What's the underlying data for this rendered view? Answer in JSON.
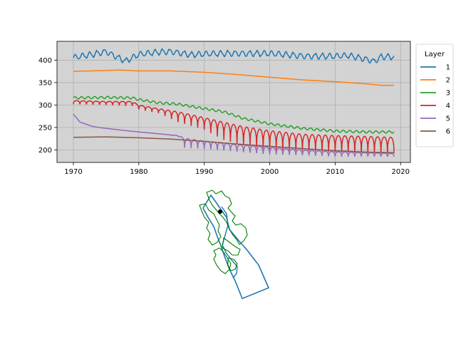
{
  "chart_data": [
    {
      "type": "line",
      "title": "",
      "xlabel": "",
      "ylabel": "",
      "xlim": [
        1967.5,
        2021.5
      ],
      "ylim": [
        172,
        442
      ],
      "x_ticks": [
        1970,
        1980,
        1990,
        2000,
        2010,
        2020
      ],
      "y_ticks": [
        200,
        250,
        300,
        350,
        400
      ],
      "grid": true,
      "background": "#d3d3d3",
      "legend": {
        "title": "Layer",
        "placement": "outside-right"
      },
      "series": [
        {
          "name": "1",
          "color": "#1f77b4",
          "pattern": "jagged",
          "points": [
            [
              1970,
              405
            ],
            [
              1973,
              413
            ],
            [
              1975,
              420
            ],
            [
              1977,
              405
            ],
            [
              1978,
              398
            ],
            [
              1980,
              412
            ],
            [
              1983,
              418
            ],
            [
              1985,
              420
            ],
            [
              1988,
              412
            ],
            [
              1990,
              413
            ],
            [
              1995,
              416
            ],
            [
              2000,
              414
            ],
            [
              2005,
              410
            ],
            [
              2010,
              408
            ],
            [
              2012,
              410
            ],
            [
              2015,
              402
            ],
            [
              2016,
              398
            ],
            [
              2017,
              408
            ],
            [
              2019,
              407
            ]
          ]
        },
        {
          "name": "2",
          "color": "#ff7f0e",
          "pattern": "smooth",
          "points": [
            [
              1970,
              375
            ],
            [
              1975,
              377
            ],
            [
              1977,
              378
            ],
            [
              1980,
              376
            ],
            [
              1985,
              376
            ],
            [
              1990,
              373
            ],
            [
              1995,
              368
            ],
            [
              2000,
              362
            ],
            [
              2005,
              356
            ],
            [
              2010,
              352
            ],
            [
              2015,
              347
            ],
            [
              2017,
              344
            ],
            [
              2019,
              344
            ]
          ]
        },
        {
          "name": "3",
          "color": "#2ca02c",
          "pattern": "wavy",
          "points": [
            [
              1970,
              316
            ],
            [
              1975,
              317
            ],
            [
              1979,
              316
            ],
            [
              1980,
              312
            ],
            [
              1983,
              305
            ],
            [
              1986,
              302
            ],
            [
              1990,
              292
            ],
            [
              1993,
              285
            ],
            [
              1996,
              270
            ],
            [
              2000,
              258
            ],
            [
              2005,
              248
            ],
            [
              2010,
              242
            ],
            [
              2015,
              240
            ],
            [
              2019,
              240
            ]
          ]
        },
        {
          "name": "4",
          "color": "#d62728",
          "pattern": "seasonal",
          "points": [
            [
              1970,
              310
            ],
            [
              1975,
              308
            ],
            [
              1979,
              308
            ],
            [
              1980,
              300
            ],
            [
              1983,
              292
            ],
            [
              1986,
              285
            ],
            [
              1990,
              272
            ],
            [
              1993,
              262
            ],
            [
              1996,
              252
            ],
            [
              2000,
              243
            ],
            [
              2005,
              235
            ],
            [
              2010,
              232
            ],
            [
              2015,
              230
            ],
            [
              2019,
              228
            ]
          ],
          "troughs": [
            [
              1970,
              302
            ],
            [
              1975,
              300
            ],
            [
              1979,
              298
            ],
            [
              1980,
              290
            ],
            [
              1983,
              282
            ],
            [
              1986,
              262
            ],
            [
              1990,
              245
            ],
            [
              1993,
              222
            ],
            [
              1996,
              210
            ],
            [
              2000,
              202
            ],
            [
              2005,
              198
            ],
            [
              2010,
              195
            ],
            [
              2015,
              193
            ],
            [
              2019,
              192
            ]
          ]
        },
        {
          "name": "5",
          "color": "#9467bd",
          "pattern": "seasonal",
          "points": [
            [
              1970,
              280
            ],
            [
              1971,
              262
            ],
            [
              1973,
              252
            ],
            [
              1975,
              248
            ],
            [
              1978,
              243
            ],
            [
              1980,
              240
            ],
            [
              1983,
              236
            ],
            [
              1986,
              232
            ],
            [
              1987,
              226
            ],
            [
              1990,
              220
            ],
            [
              1995,
              212
            ],
            [
              2000,
              206
            ],
            [
              2005,
              200
            ],
            [
              2010,
              196
            ],
            [
              2015,
              194
            ],
            [
              2019,
              192
            ]
          ],
          "troughs": [
            [
              1970,
              280
            ],
            [
              1971,
              262
            ],
            [
              1973,
              252
            ],
            [
              1975,
              248
            ],
            [
              1978,
              243
            ],
            [
              1980,
              240
            ],
            [
              1983,
              236
            ],
            [
              1986,
              230
            ],
            [
              1987,
              205
            ],
            [
              1990,
              202
            ],
            [
              1995,
              196
            ],
            [
              2000,
              190
            ],
            [
              2005,
              188
            ],
            [
              2010,
              185
            ],
            [
              2015,
              185
            ],
            [
              2019,
              185
            ]
          ]
        },
        {
          "name": "6",
          "color": "#8c564b",
          "pattern": "smooth",
          "points": [
            [
              1970,
              228
            ],
            [
              1975,
              229
            ],
            [
              1980,
              227
            ],
            [
              1985,
              224
            ],
            [
              1990,
              219
            ],
            [
              1995,
              213
            ],
            [
              2000,
              208
            ],
            [
              2005,
              203
            ],
            [
              2010,
              198
            ],
            [
              2015,
              195
            ],
            [
              2019,
              194
            ]
          ]
        }
      ]
    },
    {
      "type": "map",
      "title": "",
      "colors": {
        "boundary": "#1f77b4",
        "subregions": "#008000",
        "marker": "#000000"
      }
    }
  ]
}
